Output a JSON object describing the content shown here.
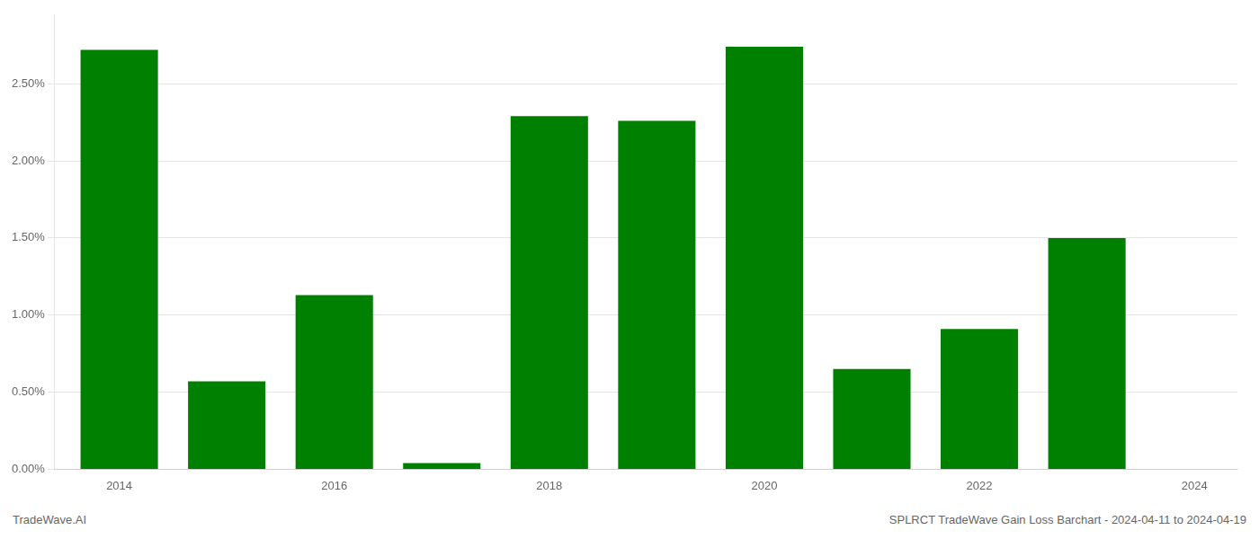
{
  "chart_data": {
    "type": "bar",
    "x": [
      2014,
      2015,
      2016,
      2017,
      2018,
      2019,
      2020,
      2021,
      2022,
      2023
    ],
    "values": [
      0.0272,
      0.0057,
      0.0113,
      0.0004,
      0.0229,
      0.0226,
      0.0274,
      0.0065,
      0.0091,
      0.015
    ],
    "color": "#008000",
    "xlim": [
      2013.4,
      2024.4
    ],
    "xticks": [
      2014,
      2016,
      2018,
      2020,
      2022,
      2024
    ],
    "ylim": [
      0,
      0.0295
    ],
    "yticks": [
      {
        "value": 0.0,
        "label": "0.00%"
      },
      {
        "value": 0.005,
        "label": "0.50%"
      },
      {
        "value": 0.01,
        "label": "1.00%"
      },
      {
        "value": 0.015,
        "label": "1.50%"
      },
      {
        "value": 0.02,
        "label": "2.00%"
      },
      {
        "value": 0.025,
        "label": "2.50%"
      }
    ],
    "grid": true,
    "annotations": [
      "TradeWave.AI",
      "SPLRCT TradeWave Gain Loss Barchart - 2024-04-11 to 2024-04-19"
    ]
  }
}
